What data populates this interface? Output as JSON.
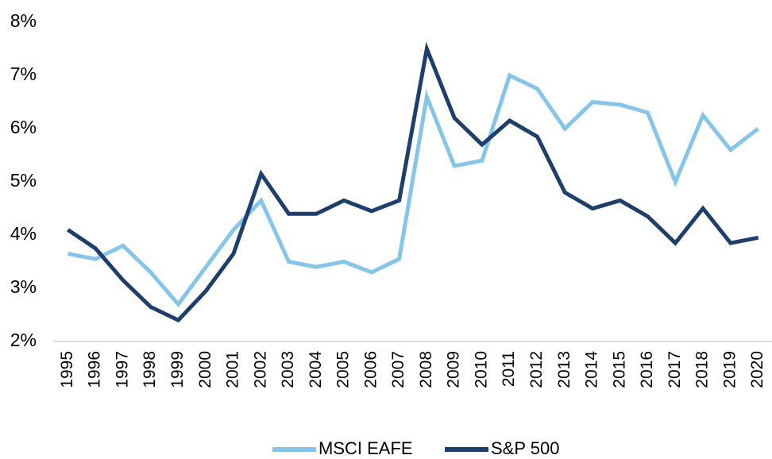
{
  "chart_data": {
    "type": "line",
    "categories": [
      "1995",
      "1996",
      "1997",
      "1998",
      "1999",
      "2000",
      "2001",
      "2002",
      "2003",
      "2004",
      "2005",
      "2006",
      "2007",
      "2008",
      "2009",
      "2010",
      "2011",
      "2012",
      "2013",
      "2014",
      "2015",
      "2016",
      "2017",
      "2018",
      "2019",
      "2020"
    ],
    "series": [
      {
        "name": "MSCI EAFE",
        "color": "#86c5ea",
        "values": [
          3.65,
          3.55,
          3.8,
          3.3,
          2.7,
          3.4,
          4.1,
          4.65,
          3.5,
          3.4,
          3.5,
          3.3,
          3.55,
          6.6,
          5.3,
          5.4,
          7.0,
          6.75,
          6.0,
          6.5,
          6.45,
          6.3,
          5.0,
          6.25,
          5.6,
          6.0
        ]
      },
      {
        "name": "S&P 500",
        "color": "#1e3f6c",
        "values": [
          4.1,
          3.75,
          3.15,
          2.65,
          2.4,
          2.95,
          3.65,
          5.15,
          4.4,
          4.4,
          4.65,
          4.45,
          4.65,
          7.5,
          6.2,
          5.7,
          6.15,
          5.85,
          4.8,
          4.5,
          4.65,
          4.35,
          3.85,
          4.5,
          3.85,
          3.95
        ]
      }
    ],
    "ylim": [
      2,
      8
    ],
    "yticks": [
      {
        "value": 2,
        "label": "2%"
      },
      {
        "value": 3,
        "label": "3%"
      },
      {
        "value": 4,
        "label": "4%"
      },
      {
        "value": 5,
        "label": "5%"
      },
      {
        "value": 6,
        "label": "6%"
      },
      {
        "value": 7,
        "label": "7%"
      },
      {
        "value": 8,
        "label": "8%"
      }
    ],
    "grid": false,
    "legend": "bottom"
  }
}
